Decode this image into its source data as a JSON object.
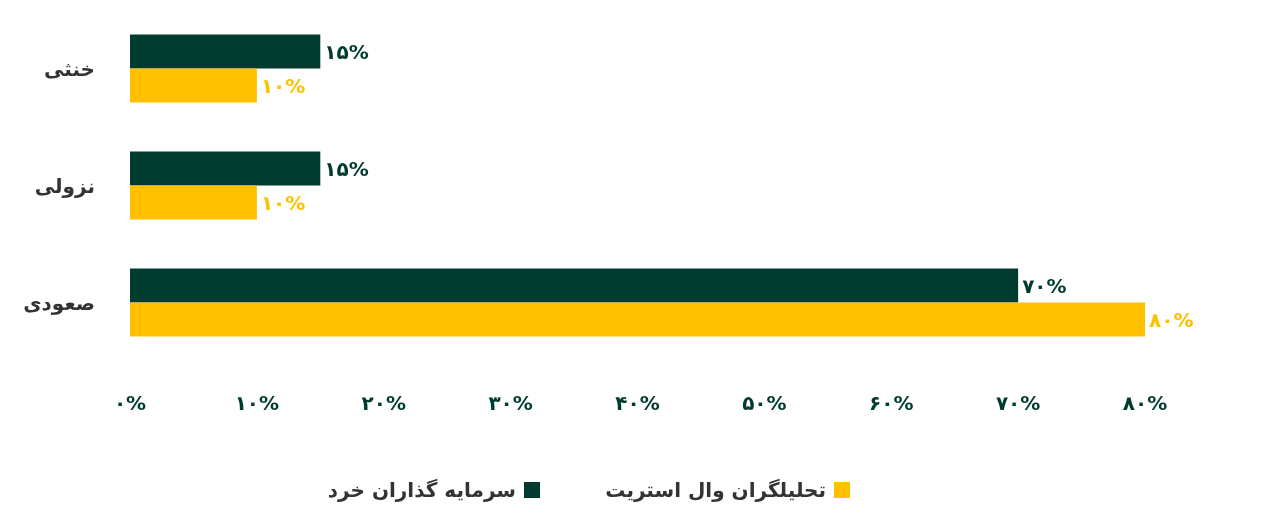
{
  "chart_data": {
    "type": "bar",
    "orientation": "horizontal",
    "categories": [
      "خنثی",
      "نزولی",
      "صعودی"
    ],
    "series": [
      {
        "name": "سرمایه گذاران خرد",
        "color": "#003b2f",
        "values": [
          15,
          15,
          70
        ],
        "value_labels": [
          "۱۵%",
          "۱۵%",
          "۷۰%"
        ]
      },
      {
        "name": "تحلیلگران وال استریت",
        "color": "#ffc000",
        "values": [
          10,
          10,
          80
        ],
        "value_labels": [
          "۱۰%",
          "۱۰%",
          "۸۰%"
        ]
      }
    ],
    "xlim": [
      0,
      80
    ],
    "xticks": [
      {
        "value": 0,
        "label": "۰%"
      },
      {
        "value": 10,
        "label": "۱۰%"
      },
      {
        "value": 20,
        "label": "۲۰%"
      },
      {
        "value": 30,
        "label": "۳۰%"
      },
      {
        "value": 40,
        "label": "۴۰%"
      },
      {
        "value": 50,
        "label": "۵۰%"
      },
      {
        "value": 60,
        "label": "۶۰%"
      },
      {
        "value": 70,
        "label": "۷۰%"
      },
      {
        "value": 80,
        "label": "۸۰%"
      }
    ],
    "grid": false,
    "legend": "bottom"
  }
}
